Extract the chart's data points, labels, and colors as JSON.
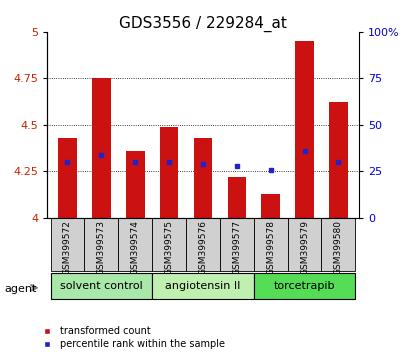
{
  "title": "GDS3556 / 229284_at",
  "samples": [
    "GSM399572",
    "GSM399573",
    "GSM399574",
    "GSM399575",
    "GSM399576",
    "GSM399577",
    "GSM399578",
    "GSM399579",
    "GSM399580"
  ],
  "red_values": [
    4.43,
    4.75,
    4.36,
    4.49,
    4.43,
    4.22,
    4.13,
    4.95,
    4.62
  ],
  "blue_values": [
    4.3,
    4.34,
    4.3,
    4.3,
    4.29,
    4.28,
    4.255,
    4.36,
    4.3
  ],
  "ylim": [
    4.0,
    5.0
  ],
  "yticks": [
    4.0,
    4.25,
    4.5,
    4.75,
    5.0
  ],
  "ytick_labels": [
    "4",
    "4.25",
    "4.5",
    "4.75",
    "5"
  ],
  "right_yticks": [
    0,
    25,
    50,
    75,
    100
  ],
  "right_ytick_labels": [
    "0",
    "25",
    "50",
    "75",
    "100%"
  ],
  "groups": [
    {
      "label": "solvent control",
      "start": 0,
      "end": 3,
      "color": "#a8e8a8"
    },
    {
      "label": "angiotensin II",
      "start": 3,
      "end": 6,
      "color": "#c0f0b0"
    },
    {
      "label": "torcetrapib",
      "start": 6,
      "end": 9,
      "color": "#55dd55"
    }
  ],
  "bar_color": "#cc1111",
  "blue_color": "#2222cc",
  "sample_box_color": "#d0d0d0",
  "tick_label_color_left": "#cc2200",
  "tick_label_color_right": "#0000cc",
  "agent_label": "agent",
  "legend_red": "transformed count",
  "legend_blue": "percentile rank within the sample",
  "bar_bottom": 4.0,
  "bar_width": 0.55,
  "title_fontsize": 11,
  "tick_fontsize": 8,
  "sample_fontsize": 6.5,
  "group_fontsize": 8,
  "legend_fontsize": 7
}
